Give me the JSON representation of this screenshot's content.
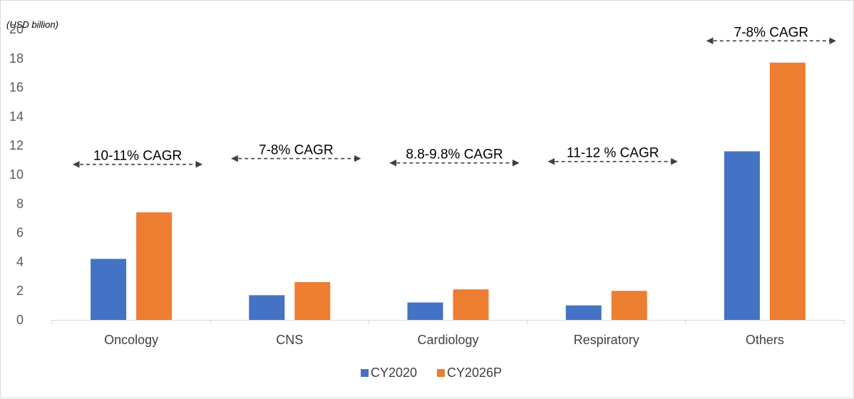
{
  "chart_data": {
    "type": "bar",
    "unit_label": "(USD billion)",
    "categories": [
      "Oncology",
      "CNS",
      "Cardiology",
      "Respiratory",
      "Others"
    ],
    "series": [
      {
        "name": "CY2020",
        "color": "#4472c4",
        "values": [
          4.2,
          1.7,
          1.2,
          1.0,
          11.6
        ]
      },
      {
        "name": "CY2026P",
        "color": "#ed7d31",
        "values": [
          7.4,
          2.6,
          2.1,
          2.0,
          17.7
        ]
      }
    ],
    "ylim": [
      0,
      20
    ],
    "yticks": [
      "0",
      "2",
      "4",
      "6",
      "8",
      "10",
      "12",
      "14",
      "16",
      "18",
      "20"
    ],
    "grid": false,
    "legend": "bottom",
    "annotations": [
      {
        "label": "10-11% CAGR",
        "category": "Oncology",
        "value": 10.7
      },
      {
        "label": "7-8% CAGR",
        "category": "CNS",
        "value": 11.1
      },
      {
        "label": "8.8-9.8% CAGR",
        "category": "Cardiology",
        "value": 10.8
      },
      {
        "label": "11-12 % CAGR",
        "category": "Respiratory",
        "value": 10.9
      },
      {
        "label": "7-8% CAGR",
        "category": "Others",
        "value": 19.2
      }
    ]
  }
}
